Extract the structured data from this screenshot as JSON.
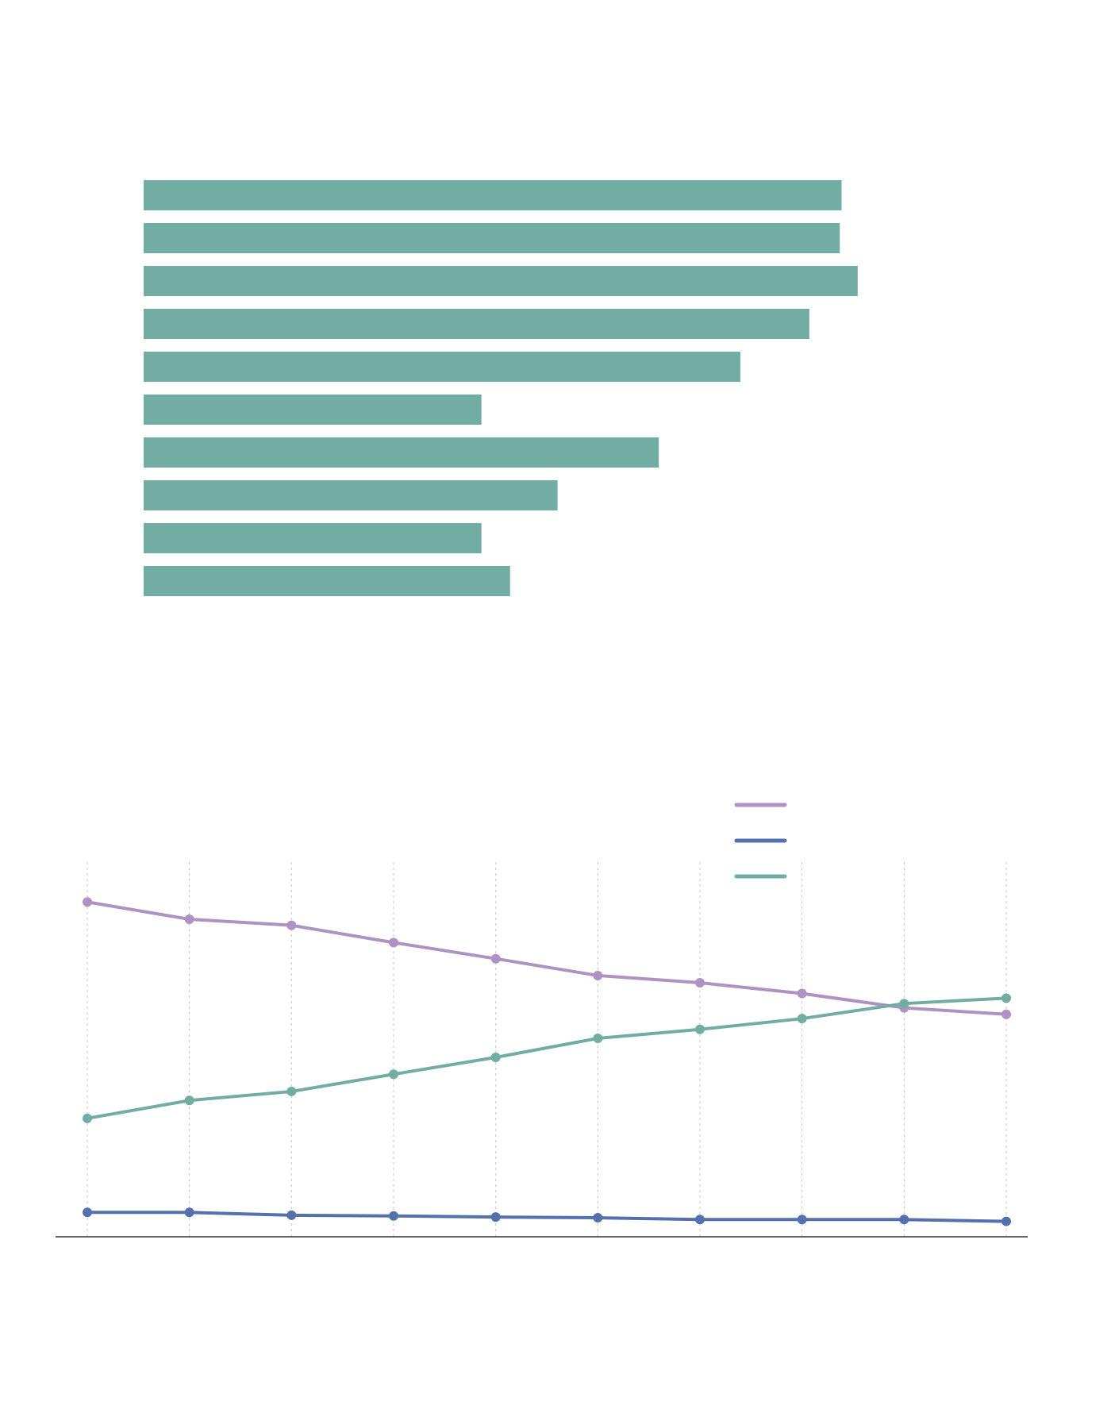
{
  "chart_data": [
    {
      "type": "bar",
      "horizontal": true,
      "categories": [
        null,
        null,
        null,
        null,
        null,
        null,
        null,
        null,
        null,
        null
      ],
      "values": [
        779,
        777,
        797,
        743,
        666,
        377,
        575,
        462,
        377,
        409
      ],
      "color": "#72ada4",
      "xlim": [
        0,
        1000
      ]
    },
    {
      "type": "line",
      "categories": [
        null,
        null,
        null,
        null,
        null,
        null,
        null,
        null,
        null,
        null
      ],
      "ylim": [
        0,
        100
      ],
      "grid": true,
      "series": [
        {
          "color": "#ad92c3",
          "values": [
            93.3,
            88.5,
            86.8,
            82,
            77.5,
            72.8,
            70.8,
            67.8,
            63.8,
            62
          ]
        },
        {
          "color": "#5470ad",
          "values": [
            6.8,
            6.8,
            6,
            5.8,
            5.5,
            5.3,
            4.8,
            4.8,
            4.8,
            4.3
          ]
        },
        {
          "color": "#72ada4",
          "values": [
            33,
            38,
            40.5,
            45.3,
            50,
            55.3,
            57.8,
            60.8,
            65,
            66.5
          ]
        }
      ]
    }
  ]
}
